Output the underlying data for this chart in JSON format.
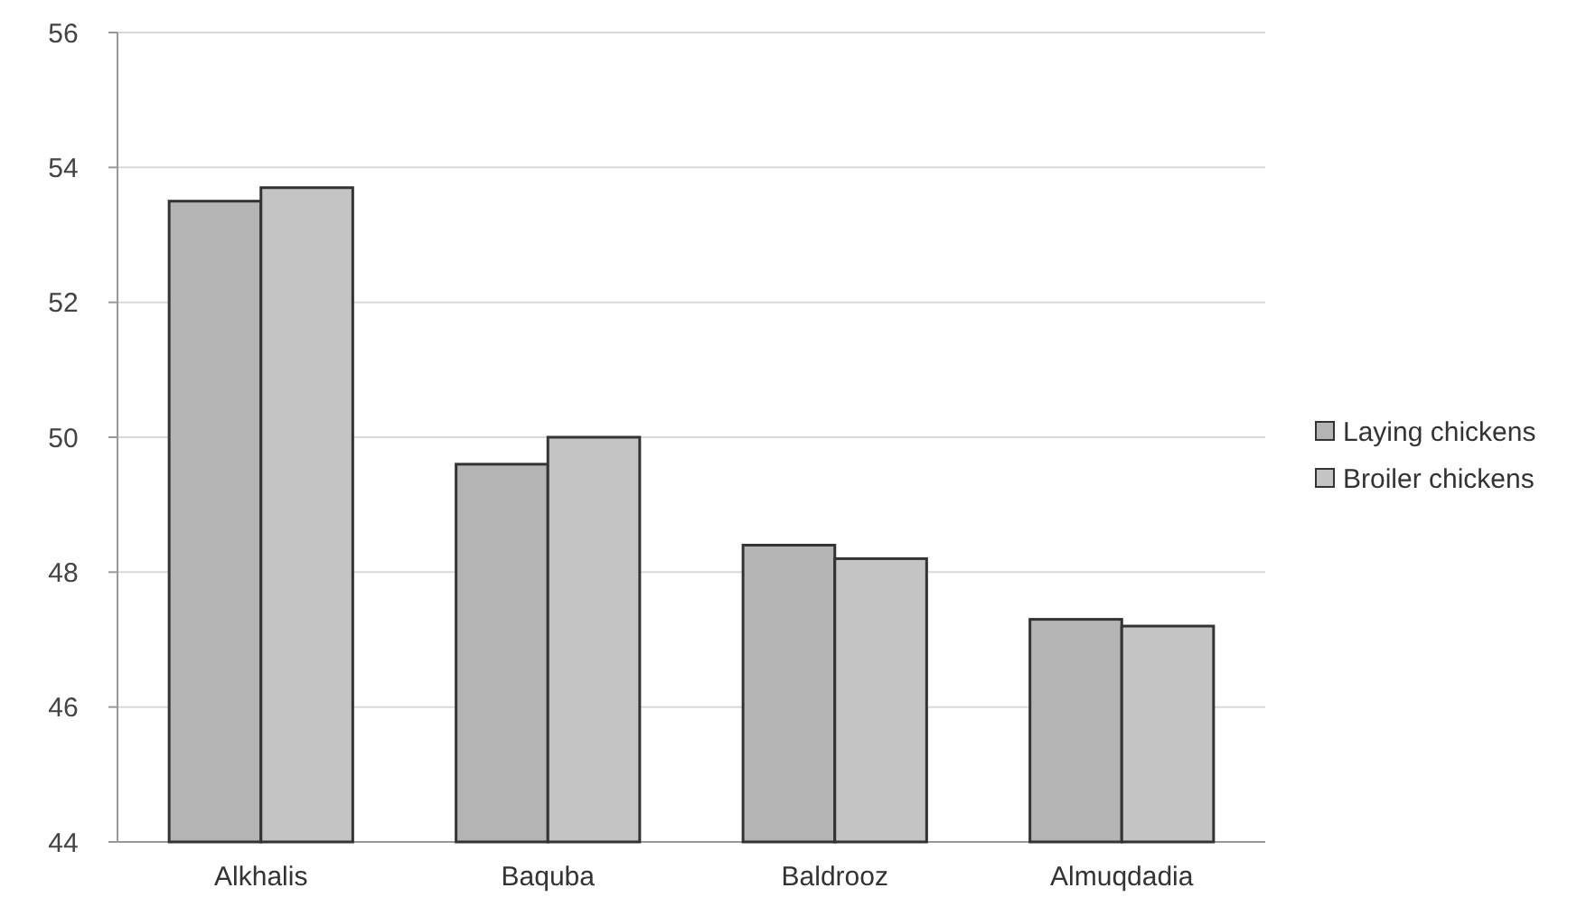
{
  "chart_data": {
    "type": "bar",
    "categories": [
      "Alkhalis",
      "Baquba",
      "Baldrooz",
      "Almuqdadia"
    ],
    "series": [
      {
        "name": "Laying chickens",
        "color": "#b4b4b4",
        "values": [
          53.5,
          49.6,
          48.4,
          47.3
        ]
      },
      {
        "name": "Broiler chickens",
        "color": "#c4c4c4",
        "values": [
          53.7,
          50.0,
          48.2,
          47.2
        ]
      }
    ],
    "ylim": [
      44,
      56
    ],
    "yticks": [
      44,
      46,
      48,
      50,
      52,
      54,
      56
    ],
    "grid": "y",
    "legend": "right"
  }
}
